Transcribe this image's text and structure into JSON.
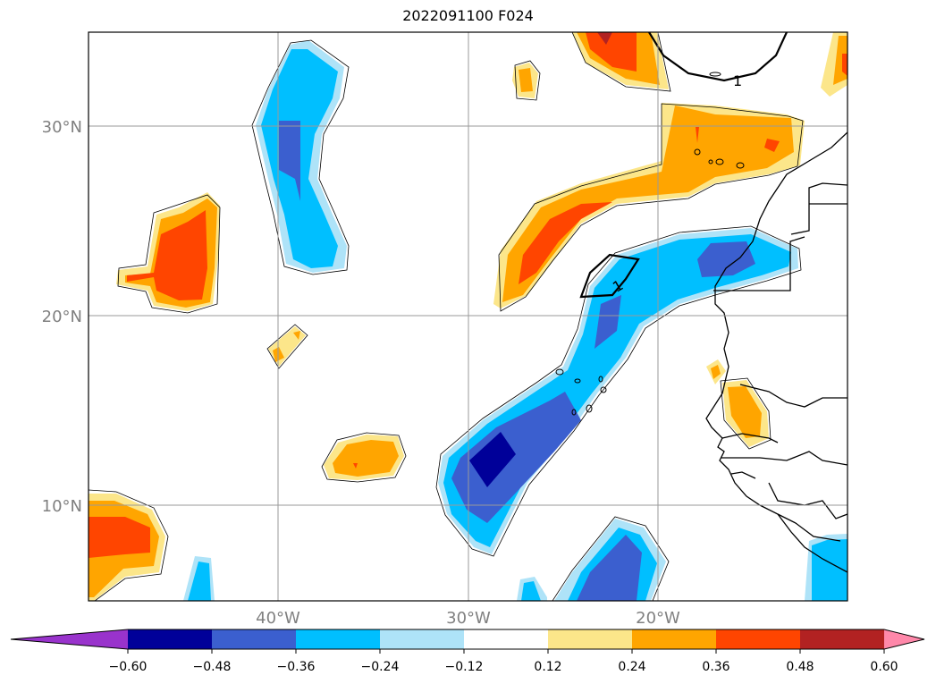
{
  "title": "2022091100 F024",
  "map": {
    "extent": {
      "lon_min": -50,
      "lon_max": -10,
      "lat_min": 5,
      "lat_max": 35
    },
    "lat_ticks": [
      {
        "value": 10,
        "label": "10°N"
      },
      {
        "value": 20,
        "label": "20°N"
      },
      {
        "value": 30,
        "label": "30°N"
      }
    ],
    "lon_ticks": [
      {
        "value": -40,
        "label": "40°W"
      },
      {
        "value": -30,
        "label": "30°W"
      },
      {
        "value": -20,
        "label": "20°W"
      }
    ],
    "gridlines": true,
    "contour_label": "1",
    "field": "shaded anomaly with thin black zero line and thick black contour labelled 1"
  },
  "colorbar": {
    "levels": [
      -0.6,
      -0.48,
      -0.36,
      -0.24,
      -0.12,
      0.12,
      0.24,
      0.36,
      0.48,
      0.6
    ],
    "tick_labels": [
      "−0.60",
      "−0.48",
      "−0.36",
      "−0.24",
      "−0.12",
      "0.12",
      "0.24",
      "0.36",
      "0.48",
      "0.60"
    ],
    "colors": [
      "#9933cc",
      "#000099",
      "#3b5fcf",
      "#00bfff",
      "#aee3f8",
      "#ffffff",
      "#fce68a",
      "#ffa500",
      "#ff4500",
      "#b22222",
      "#ff88aa"
    ],
    "extend": "both"
  }
}
